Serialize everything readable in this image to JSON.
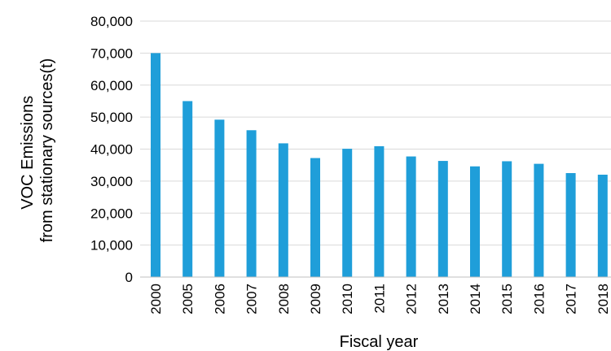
{
  "chart_data": {
    "type": "bar",
    "title": "",
    "xlabel": "Fiscal year",
    "ylabel_lines": [
      "VOC  Emissions",
      "from stationary sources(t)"
    ],
    "categories": [
      "2000",
      "2005",
      "2006",
      "2007",
      "2008",
      "2009",
      "2010",
      "2011",
      "2012",
      "2013",
      "2014",
      "2015",
      "2016",
      "2017",
      "2018"
    ],
    "values": [
      70000,
      55000,
      49200,
      45900,
      41800,
      37200,
      40100,
      40900,
      37700,
      36300,
      34600,
      36200,
      35400,
      32500,
      32000
    ],
    "ylim": [
      0,
      80000
    ],
    "yticks": [
      "0",
      "10,000",
      "20,000",
      "30,000",
      "40,000",
      "50,000",
      "60,000",
      "70,000",
      "80,000"
    ],
    "grid": true,
    "legend": "none",
    "colors": {
      "bar": "#1f9ed9",
      "grid": "#d9d9d9",
      "axis": "#bfbfbf"
    }
  }
}
